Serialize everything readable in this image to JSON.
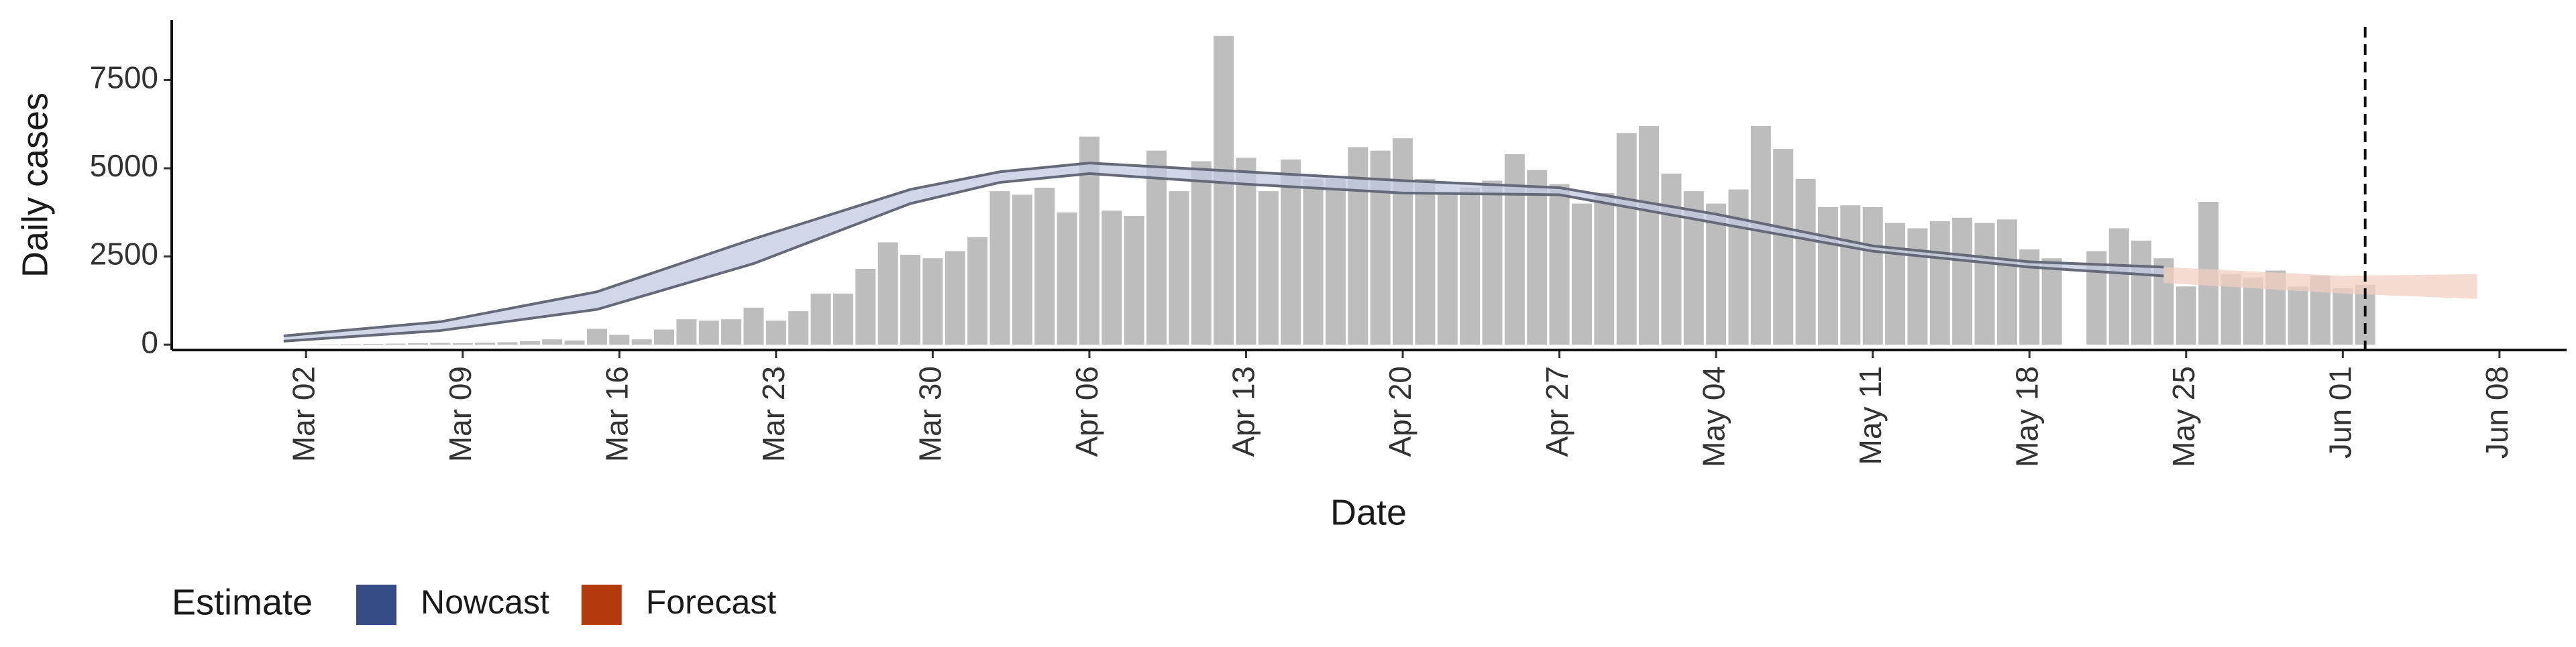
{
  "chart_data": {
    "type": "bar",
    "x_label": "Date",
    "y_label": "Daily cases",
    "color": "#bdbdbd",
    "line_color": "#666a78",
    "x": [
      "03-01",
      "03-02",
      "03-03",
      "03-04",
      "03-05",
      "03-06",
      "03-07",
      "03-08",
      "03-09",
      "03-10",
      "03-11",
      "03-12",
      "03-13",
      "03-14",
      "03-15",
      "03-16",
      "03-17",
      "03-18",
      "03-19",
      "03-20",
      "03-21",
      "03-22",
      "03-23",
      "03-24",
      "03-25",
      "03-26",
      "03-27",
      "03-28",
      "03-29",
      "03-30",
      "03-31",
      "04-01",
      "04-02",
      "04-03",
      "04-04",
      "04-05",
      "04-06",
      "04-07",
      "04-08",
      "04-09",
      "04-10",
      "04-11",
      "04-12",
      "04-13",
      "04-14",
      "04-15",
      "04-16",
      "04-17",
      "04-18",
      "04-19",
      "04-20",
      "04-21",
      "04-22",
      "04-23",
      "04-24",
      "04-25",
      "04-26",
      "04-27",
      "04-28",
      "04-29",
      "04-30",
      "05-01",
      "05-02",
      "05-03",
      "05-04",
      "05-05",
      "05-06",
      "05-07",
      "05-08",
      "05-09",
      "05-10",
      "05-11",
      "05-12",
      "05-13",
      "05-14",
      "05-15",
      "05-16",
      "05-17",
      "05-18",
      "05-19",
      "05-20",
      "05-21",
      "05-22",
      "05-23",
      "05-24",
      "05-25",
      "05-26",
      "05-27",
      "05-28",
      "05-29",
      "05-30",
      "05-31",
      "06-01",
      "06-02"
    ],
    "values": [
      0,
      5,
      10,
      15,
      20,
      30,
      40,
      50,
      40,
      60,
      70,
      100,
      150,
      120,
      450,
      280,
      150,
      430,
      720,
      680,
      720,
      1050,
      680,
      950,
      1450,
      1450,
      2150,
      2900,
      2550,
      2450,
      2650,
      3050,
      4350,
      4250,
      4450,
      3750,
      5900,
      3800,
      3650,
      5500,
      4350,
      5200,
      8750,
      5300,
      4350,
      5250,
      4700,
      4700,
      5600,
      5500,
      5850,
      4700,
      4300,
      4450,
      4650,
      5400,
      4950,
      4550,
      4000,
      4300,
      6000,
      6200,
      4850,
      4350,
      4000,
      4400,
      6200,
      5550,
      4700,
      3900,
      3950,
      3900,
      3450,
      3300,
      3500,
      3600,
      3450,
      3550,
      2700,
      2450,
      null,
      2650,
      3300,
      2950,
      2450,
      1650,
      4050,
      2000,
      1900,
      2100,
      1650,
      1950,
      1600,
      1700
    ],
    "bands": [
      {
        "name": "Nowcast",
        "color": "#344b86",
        "fill": "#c3c9df",
        "x": [
          "03-01",
          "03-08",
          "03-15",
          "03-22",
          "03-29",
          "04-02",
          "04-06",
          "04-13",
          "04-20",
          "04-27",
          "05-04",
          "05-11",
          "05-18",
          "05-24"
        ],
        "lower": [
          100,
          400,
          1000,
          2300,
          4000,
          4600,
          4850,
          4550,
          4300,
          4250,
          3450,
          2650,
          2200,
          1950
        ],
        "upper": [
          250,
          650,
          1500,
          3000,
          4400,
          4900,
          5150,
          4900,
          4650,
          4450,
          3700,
          2800,
          2350,
          2200
        ]
      },
      {
        "name": "Forecast",
        "color": "#b33a0d",
        "fill": "#f1cfc3",
        "x": [
          "05-24",
          "06-01",
          "06-07"
        ],
        "lower": [
          1750,
          1450,
          1300
        ],
        "upper": [
          2200,
          1950,
          2000
        ]
      }
    ],
    "legend_title": "Estimate",
    "vline": "06-02",
    "xlim": [
      "02-24",
      "06-11"
    ],
    "xticks": [
      {
        "value": "03-02",
        "label": "Mar 02"
      },
      {
        "value": "03-09",
        "label": "Mar 09"
      },
      {
        "value": "03-16",
        "label": "Mar 16"
      },
      {
        "value": "03-23",
        "label": "Mar 23"
      },
      {
        "value": "03-30",
        "label": "Mar 30"
      },
      {
        "value": "04-06",
        "label": "Apr 06"
      },
      {
        "value": "04-13",
        "label": "Apr 13"
      },
      {
        "value": "04-20",
        "label": "Apr 20"
      },
      {
        "value": "04-27",
        "label": "Apr 27"
      },
      {
        "value": "05-04",
        "label": "May 04"
      },
      {
        "value": "05-11",
        "label": "May 11"
      },
      {
        "value": "05-18",
        "label": "May 18"
      },
      {
        "value": "05-25",
        "label": "May 25"
      },
      {
        "value": "06-01",
        "label": "Jun 01"
      },
      {
        "value": "06-08",
        "label": "Jun 08"
      }
    ],
    "ylim": [
      -150,
      9200
    ],
    "yticks": [
      0,
      2500,
      5000,
      7500
    ]
  }
}
